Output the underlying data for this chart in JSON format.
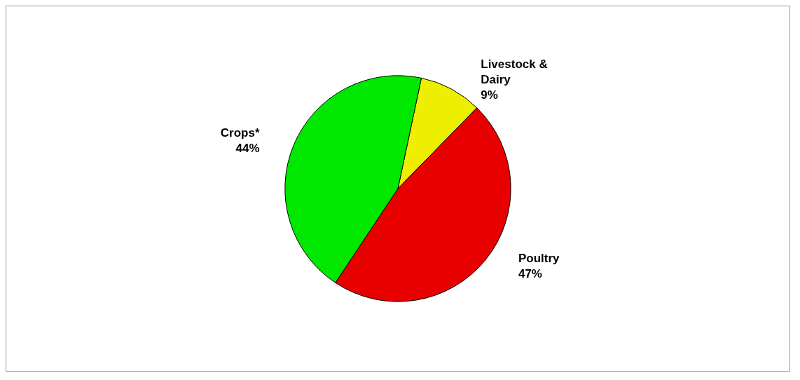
{
  "chart_data": {
    "type": "pie",
    "categories": [
      "Livestock & Dairy",
      "Poultry",
      "Crops*"
    ],
    "values": [
      9,
      47,
      44
    ],
    "colors": [
      "#eeee00",
      "#e80000",
      "#00e800"
    ],
    "value_labels": [
      "9%",
      "47%",
      "44%"
    ]
  }
}
